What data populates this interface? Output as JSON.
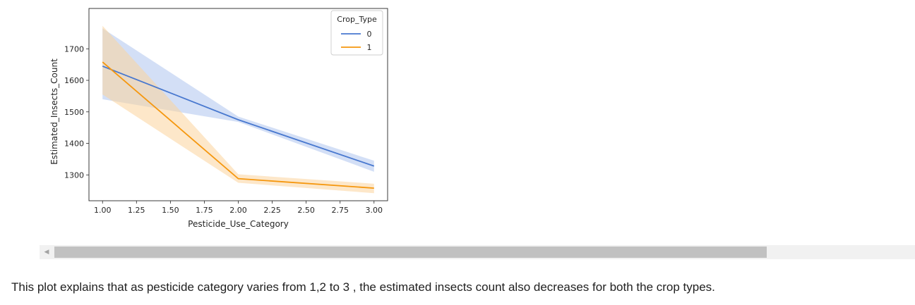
{
  "chart_data": {
    "type": "line",
    "title": "",
    "xlabel": "Pesticide_Use_Category",
    "ylabel": "Estimated_Insects_Count",
    "x": [
      1,
      2,
      3
    ],
    "xticks": [
      "1.00",
      "1.25",
      "1.50",
      "1.75",
      "2.00",
      "2.25",
      "2.50",
      "2.75",
      "3.00"
    ],
    "yticks": [
      "1300",
      "1400",
      "1500",
      "1600",
      "1700"
    ],
    "xlim": [
      0.9,
      3.1
    ],
    "ylim": [
      1218,
      1828
    ],
    "grid": false,
    "legend": {
      "title": "Crop_Type",
      "placement": "top-right"
    },
    "series": [
      {
        "name": "0",
        "color": "#4878cf",
        "band_color": "#aec5ef",
        "values": [
          1645,
          1475,
          1328
        ],
        "ci_low": [
          1540,
          1468,
          1310
        ],
        "ci_high": [
          1765,
          1485,
          1345
        ]
      },
      {
        "name": "1",
        "color": "#f5970e",
        "band_color": "#fbd49c",
        "values": [
          1658,
          1288,
          1258
        ],
        "ci_low": [
          1555,
          1275,
          1242
        ],
        "ci_high": [
          1773,
          1302,
          1272
        ]
      }
    ]
  },
  "scrollbar": {
    "arrow_icon": "scroll-left-arrow",
    "arrow_glyph": "◀"
  },
  "caption": {
    "text": "This plot explains that as pesticide category varies from 1,2 to 3 , the estimated insects count also decreases for both the crop types."
  }
}
